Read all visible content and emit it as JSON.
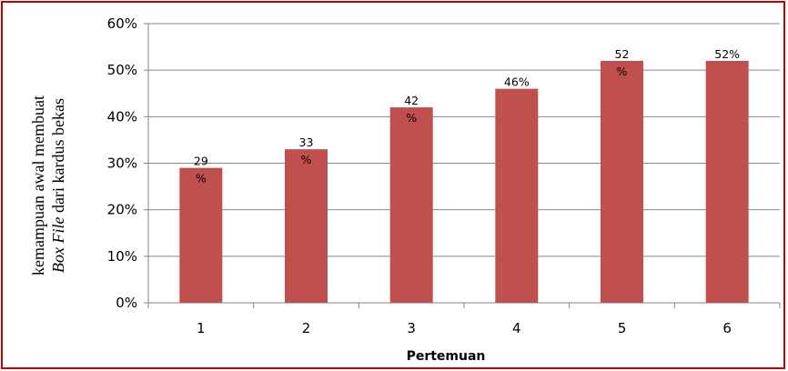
{
  "chart_data": {
    "type": "bar",
    "categories": [
      "1",
      "2",
      "3",
      "4",
      "5",
      "6"
    ],
    "values": [
      0.29,
      0.33,
      0.42,
      0.46,
      0.52,
      0.52
    ],
    "data_labels": [
      {
        "line1": "29",
        "line2": "%"
      },
      {
        "line1": "33",
        "line2": "%"
      },
      {
        "line1": "42",
        "line2": "%"
      },
      {
        "line1": "46%",
        "line2": ""
      },
      {
        "line1": "52",
        "line2": "%"
      },
      {
        "line1": "52%",
        "line2": ""
      }
    ],
    "y_ticks": [
      "0%",
      "10%",
      "20%",
      "30%",
      "40%",
      "50%",
      "60%"
    ],
    "ylim": [
      0,
      0.6
    ],
    "xlabel": "Pertemuan",
    "ylabel": {
      "line1": "kemampuan awal membuat",
      "line2_italic": "Box File",
      "line2_rest": " dari kardus bekas"
    },
    "grid": true,
    "bar_color": "#c0504d",
    "gridline_color": "#868686"
  }
}
